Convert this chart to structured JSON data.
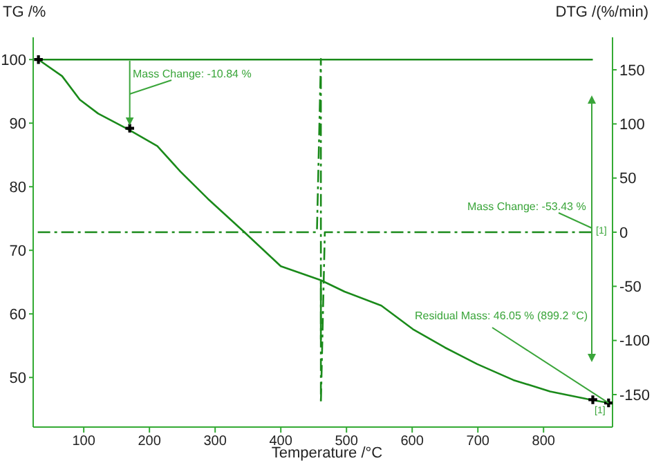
{
  "chart_data": {
    "type": "line",
    "ylabel": "TG /%",
    "y2label": "DTG /(%/min)",
    "xlabel": "Temperature /°C",
    "xlim": [
      23,
      905
    ],
    "xticks": [
      100,
      200,
      300,
      400,
      500,
      600,
      700,
      800
    ],
    "ylim": [
      42.2,
      103.5
    ],
    "yticks": [
      50,
      60,
      70,
      80,
      90,
      100
    ],
    "y2lim": [
      -180,
      180
    ],
    "y2ticks": [
      -150,
      -100,
      -50,
      0,
      50,
      100,
      150
    ],
    "grid": false,
    "series": [
      {
        "color": "#1a8a1a",
        "line_style": "solid",
        "x": [
          31,
          67,
          94,
          122,
          168,
          212,
          247,
          289,
          344,
          400,
          461,
          461,
          461,
          497,
          553,
          601,
          650,
          699,
          754,
          810,
          872,
          899
        ],
        "values": [
          100,
          97.4,
          93.7,
          91.5,
          89,
          86.4,
          82.4,
          78.1,
          72.9,
          67.5,
          65.3,
          56,
          65.3,
          63.5,
          61.3,
          57.6,
          54.7,
          52.1,
          49.6,
          47.8,
          46.5,
          46
        ]
      },
      {
        "color": "#1a8a1a",
        "line_style": "solid",
        "x": [
          30,
          875
        ],
        "values": [
          100,
          100
        ]
      },
      {
        "color": "#1a8a1a",
        "line_style": "dashed",
        "axis": "y2",
        "x": [
          30,
          455,
          461,
          461,
          467,
          875
        ],
        "values": [
          0,
          0,
          160,
          -158,
          0,
          0
        ]
      },
      {
        "type": "scatter",
        "color": "#000000",
        "marker": "cross",
        "x": [
          31,
          170,
          875,
          899
        ],
        "values": [
          100,
          89.2,
          46.5,
          46
        ]
      }
    ],
    "annotations": [
      {
        "text": "Mass Change: -10.84 %",
        "x": 170,
        "y": 89.2
      },
      "Mass Change: -53.43 %",
      "[1]",
      {
        "text": "Residual Mass: 46.05 % (899.2 °C)",
        "x": 899,
        "y": 46
      },
      "[1]"
    ]
  }
}
